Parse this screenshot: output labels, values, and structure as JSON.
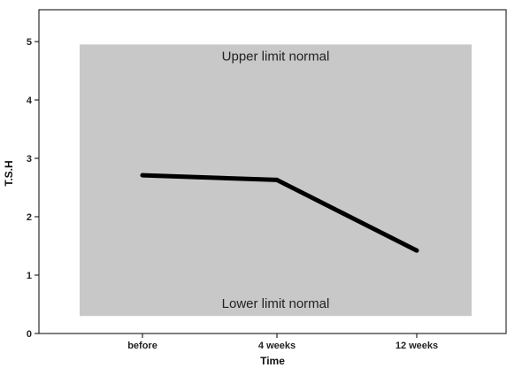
{
  "chart_data": {
    "type": "line",
    "title": "",
    "xlabel": "Time",
    "ylabel": "T.S.H",
    "categories": [
      "before",
      "4 weeks",
      "12 weeks"
    ],
    "series": [
      {
        "values": [
          2.71,
          2.63,
          1.42
        ]
      }
    ],
    "ylim": [
      0,
      5.5
    ],
    "yticks": [
      0,
      1,
      2,
      3,
      4,
      5
    ],
    "grid": false,
    "normal_range": {
      "lower": 0.3,
      "upper": 4.95,
      "upper_label": "Upper limit normal",
      "lower_label": "Lower limit normal",
      "color": "#c8c8c8"
    },
    "line_color": "#000000"
  }
}
